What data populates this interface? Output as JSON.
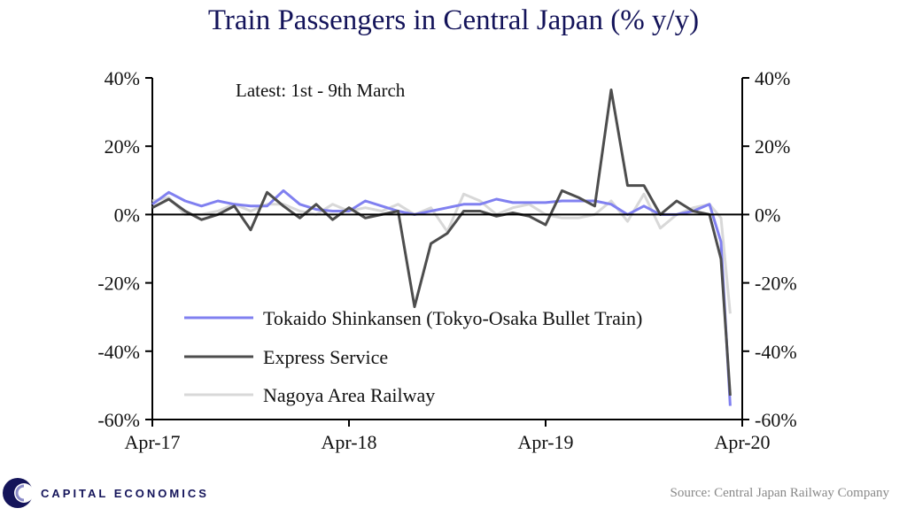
{
  "chart_data": {
    "type": "line",
    "title": "Train Passengers in Central Japan (% y/y)",
    "annotation": "Latest:  1st - 9th March",
    "x_tick_labels": [
      "Apr-17",
      "Apr-18",
      "Apr-19",
      "Apr-20"
    ],
    "y_tick_labels_left": [
      "40%",
      "20%",
      "0%",
      "-20%",
      "-40%",
      "-60%"
    ],
    "y_tick_labels_right": [
      "40%",
      "20%",
      "0%",
      "-20%",
      "-40%",
      "-60%"
    ],
    "ylim": [
      -60,
      40
    ],
    "y_ticks": [
      40,
      20,
      0,
      -20,
      -40,
      -60
    ],
    "x_start": "2017-04",
    "x_end": "2020-04",
    "x_ticks": [
      "2017-04",
      "2018-04",
      "2019-04",
      "2020-04"
    ],
    "legend_position": "bottom-center",
    "grid": false,
    "series": [
      {
        "name": "Tokaido Shinkansen (Tokyo-Osaka Bullet Train)",
        "color": "#8080f0",
        "points": [
          [
            "2017-04",
            3
          ],
          [
            "2017-05",
            6.5
          ],
          [
            "2017-06",
            4
          ],
          [
            "2017-07",
            2.5
          ],
          [
            "2017-08",
            4
          ],
          [
            "2017-09",
            3
          ],
          [
            "2017-10",
            2.5
          ],
          [
            "2017-11",
            2.5
          ],
          [
            "2017-12",
            7
          ],
          [
            "2018-01",
            3
          ],
          [
            "2018-02",
            1.5
          ],
          [
            "2018-03",
            1
          ],
          [
            "2018-04",
            1
          ],
          [
            "2018-05",
            4
          ],
          [
            "2018-06",
            2.5
          ],
          [
            "2018-07",
            1
          ],
          [
            "2018-08",
            0
          ],
          [
            "2018-09",
            1
          ],
          [
            "2018-10",
            2
          ],
          [
            "2018-11",
            3
          ],
          [
            "2018-12",
            3
          ],
          [
            "2019-01",
            4.5
          ],
          [
            "2019-02",
            3.5
          ],
          [
            "2019-03",
            3.5
          ],
          [
            "2019-04",
            3.5
          ],
          [
            "2019-05",
            4
          ],
          [
            "2019-06",
            4
          ],
          [
            "2019-07",
            4
          ],
          [
            "2019-08",
            3
          ],
          [
            "2019-09",
            0
          ],
          [
            "2019-10",
            2.5
          ],
          [
            "2019-11",
            0
          ],
          [
            "2019-12",
            0
          ],
          [
            "2020-01",
            1
          ],
          [
            "2020-02",
            3
          ],
          [
            "2020-02-22",
            -8
          ],
          [
            "2020-03-09",
            -56
          ]
        ]
      },
      {
        "name": "Express Service",
        "color": "#4d4d4d",
        "points": [
          [
            "2017-04",
            2
          ],
          [
            "2017-05",
            4.5
          ],
          [
            "2017-06",
            1
          ],
          [
            "2017-07",
            -1.5
          ],
          [
            "2017-08",
            0
          ],
          [
            "2017-09",
            2.5
          ],
          [
            "2017-10",
            -4.5
          ],
          [
            "2017-11",
            6.5
          ],
          [
            "2017-12",
            2.5
          ],
          [
            "2018-01",
            -1
          ],
          [
            "2018-02",
            3
          ],
          [
            "2018-03",
            -1.5
          ],
          [
            "2018-04",
            2
          ],
          [
            "2018-05",
            -1
          ],
          [
            "2018-06",
            0
          ],
          [
            "2018-07",
            1
          ],
          [
            "2018-08",
            -27
          ],
          [
            "2018-09",
            -8.5
          ],
          [
            "2018-10",
            -5.5
          ],
          [
            "2018-11",
            1
          ],
          [
            "2018-12",
            1
          ],
          [
            "2019-01",
            -0.5
          ],
          [
            "2019-02",
            0.5
          ],
          [
            "2019-03",
            -0.5
          ],
          [
            "2019-04",
            -3
          ],
          [
            "2019-05",
            7
          ],
          [
            "2019-06",
            5
          ],
          [
            "2019-07",
            2.5
          ],
          [
            "2019-08",
            36.5
          ],
          [
            "2019-09",
            8.5
          ],
          [
            "2019-10",
            8.5
          ],
          [
            "2019-11",
            0
          ],
          [
            "2019-12",
            4
          ],
          [
            "2020-01",
            1
          ],
          [
            "2020-02",
            0
          ],
          [
            "2020-02-22",
            -13
          ],
          [
            "2020-03-09",
            -53
          ]
        ]
      },
      {
        "name": "Nagoya Area Railway",
        "color": "#d8d8d8",
        "points": [
          [
            "2017-04",
            4
          ],
          [
            "2017-05",
            5
          ],
          [
            "2017-06",
            0
          ],
          [
            "2017-07",
            0
          ],
          [
            "2017-08",
            1
          ],
          [
            "2017-09",
            3
          ],
          [
            "2017-10",
            1
          ],
          [
            "2017-11",
            3
          ],
          [
            "2017-12",
            3
          ],
          [
            "2018-01",
            1
          ],
          [
            "2018-02",
            0
          ],
          [
            "2018-03",
            3
          ],
          [
            "2018-04",
            1
          ],
          [
            "2018-05",
            2
          ],
          [
            "2018-06",
            1
          ],
          [
            "2018-07",
            3
          ],
          [
            "2018-08",
            0
          ],
          [
            "2018-09",
            2
          ],
          [
            "2018-10",
            -5
          ],
          [
            "2018-11",
            6
          ],
          [
            "2018-12",
            4
          ],
          [
            "2019-01",
            0
          ],
          [
            "2019-02",
            2
          ],
          [
            "2019-03",
            3
          ],
          [
            "2019-04",
            0
          ],
          [
            "2019-05",
            -1
          ],
          [
            "2019-06",
            -1
          ],
          [
            "2019-07",
            0
          ],
          [
            "2019-08",
            4
          ],
          [
            "2019-09",
            -2
          ],
          [
            "2019-10",
            6
          ],
          [
            "2019-11",
            -4
          ],
          [
            "2019-12",
            0
          ],
          [
            "2020-01",
            2
          ],
          [
            "2020-02",
            3
          ],
          [
            "2020-02-22",
            -1
          ],
          [
            "2020-03-09",
            -29
          ]
        ]
      }
    ]
  },
  "branding": {
    "logo_text": "CAPITAL ECONOMICS",
    "logo_color": "#14145a",
    "logo_icon": "capital-economics-c-icon"
  },
  "source_text": "Source: Central Japan Railway Company",
  "zero_line_color": "#000000"
}
